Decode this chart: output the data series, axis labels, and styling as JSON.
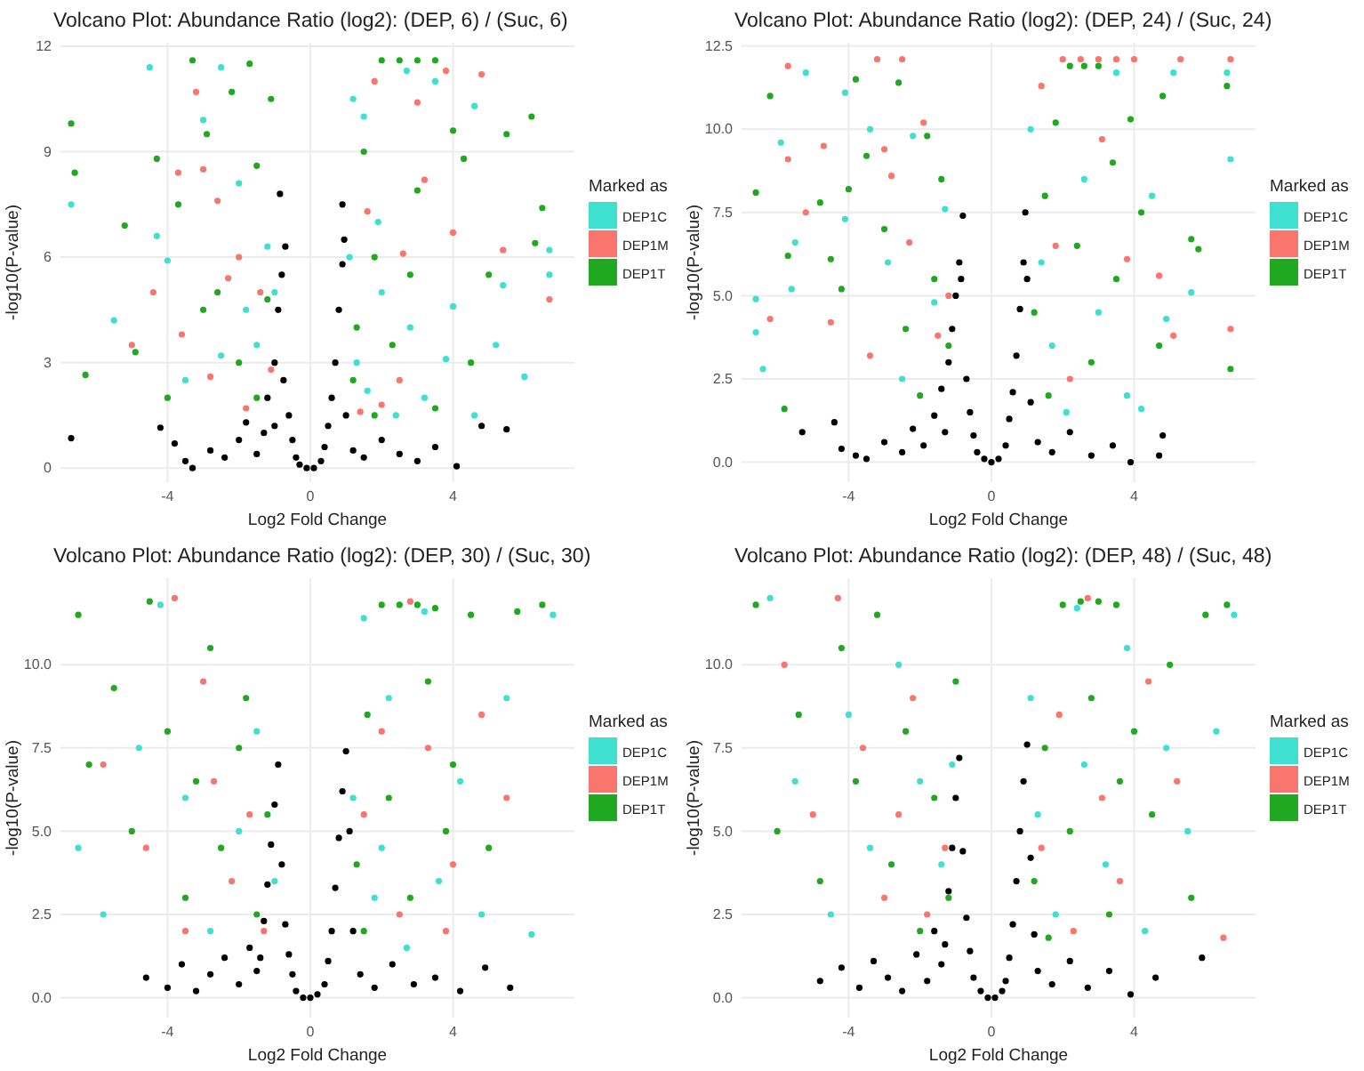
{
  "chart_data": [
    {
      "type": "scatter",
      "title": "Volcano Plot: Abundance Ratio (log2): (DEP, 6) / (Suc, 6)",
      "xlabel": "Log2 Fold Change",
      "ylabel": "-log10(P-value)",
      "legend_title": "Marked as",
      "legend": "right",
      "grid": true,
      "marker": "circle",
      "xlim": [
        -7,
        7.4
      ],
      "xticks": [
        -4,
        0,
        4
      ],
      "ylim": [
        -0.4,
        12.1
      ],
      "yticks": [
        0,
        3,
        6,
        9,
        12
      ],
      "series": [
        {
          "color": "#000000",
          "x": [
            -6.7,
            -4.2,
            -3.8,
            -3.5,
            -3.3,
            -2.8,
            -2.4,
            -2,
            -1.8,
            -1.5,
            -1.3,
            -1.2,
            -1,
            -0.9,
            -0.8,
            -0.7,
            -0.85,
            -0.75,
            -0.6,
            -0.5,
            -0.4,
            -0.3,
            -0.1,
            0.1,
            0.3,
            0.4,
            0.5,
            0.6,
            0.7,
            0.8,
            0.9,
            0.9,
            0.95,
            1.2,
            1.5,
            2,
            2.5,
            3,
            3.5,
            4.1,
            4.8,
            5.5,
            1,
            -1
          ],
          "values": [
            0.85,
            1.15,
            0.7,
            0.2,
            0,
            0.5,
            0.3,
            0.8,
            1.3,
            0.4,
            1,
            2,
            3,
            4.5,
            5.5,
            6.3,
            7.8,
            2.5,
            1.5,
            0.8,
            0.3,
            0.1,
            0,
            0,
            0.2,
            0.6,
            1.2,
            2,
            3,
            4.5,
            5.8,
            7.5,
            6.5,
            0.5,
            0.3,
            0.8,
            0.4,
            0.2,
            0.6,
            0.05,
            1.2,
            1.1,
            1.5,
            1.2
          ]
        },
        {
          "name": "DEP1C",
          "color": "#40e0d0",
          "x": [
            -6.7,
            -5.5,
            -4.5,
            -4.3,
            -4,
            -3.5,
            -2.5,
            -3,
            -2,
            -1.5,
            -1.2,
            -1,
            -2.5,
            -1.8,
            1.2,
            1.5,
            1.1,
            1.3,
            1.6,
            2,
            2.4,
            2.7,
            3.5,
            2.8,
            3.2,
            4.6,
            4,
            5.4,
            5.2,
            6,
            6.7,
            6.7,
            4.6,
            3.8,
            1.9
          ],
          "values": [
            7.5,
            4.2,
            11.4,
            6.6,
            5.9,
            2.5,
            11.4,
            9.9,
            8.1,
            3.5,
            6.3,
            5,
            3.2,
            4.5,
            10.5,
            10,
            6,
            3,
            2.2,
            5,
            1.5,
            11.3,
            11,
            4,
            2,
            10.3,
            4.6,
            5.2,
            3.5,
            2.6,
            6.2,
            5.5,
            1.5,
            3.1,
            7
          ]
        },
        {
          "name": "DEP1M",
          "color": "#f8766d",
          "x": [
            -5,
            -4.4,
            -3.7,
            -3.2,
            -3,
            -2.6,
            -2.3,
            -2,
            -1.8,
            -2.8,
            -1.4,
            -1.1,
            -3.6,
            1.4,
            1.8,
            2,
            2.5,
            3,
            3.2,
            3.8,
            4,
            4.8,
            5.4,
            6.7,
            2.6,
            1.6
          ],
          "values": [
            3.5,
            5,
            8.4,
            10.7,
            8.5,
            7.6,
            5.4,
            6,
            1.7,
            2.6,
            5,
            2.8,
            3.8,
            1.6,
            11,
            1.8,
            2.5,
            10.4,
            8.2,
            11.3,
            6.7,
            11.2,
            6.2,
            4.8,
            6.1,
            7.3
          ]
        },
        {
          "name": "DEP1T",
          "color": "#21a821",
          "x": [
            -6.3,
            -6.6,
            -6.7,
            -5.2,
            -4.9,
            -4.3,
            -4,
            -3.7,
            -3.3,
            -2.9,
            -2.6,
            -2.2,
            -1.7,
            -1.5,
            -1.1,
            -2,
            -1.5,
            -3,
            -1.2,
            1.5,
            1.8,
            2,
            2.5,
            3,
            3.5,
            2.3,
            3,
            1.3,
            4,
            4.5,
            5.5,
            6.2,
            6.3,
            6.5,
            4.3,
            3.5,
            2.8,
            1.2,
            1.8,
            5
          ],
          "values": [
            2.65,
            8.4,
            9.8,
            6.9,
            3.3,
            8.8,
            2,
            7.5,
            11.6,
            9.5,
            5,
            10.7,
            11.5,
            8.6,
            10.5,
            3,
            2,
            4.5,
            4.8,
            9,
            6,
            11.6,
            11.6,
            11.6,
            11.6,
            3.5,
            7.9,
            4,
            9.6,
            3,
            9.5,
            10,
            6.4,
            7.4,
            8.8,
            1.7,
            5.5,
            2.5,
            1.5,
            5.5
          ]
        }
      ]
    },
    {
      "type": "scatter",
      "title": "Volcano Plot: Abundance Ratio (log2): (DEP, 24) / (Suc, 24)",
      "xlabel": "Log2 Fold Change",
      "ylabel": "-log10(P-value)",
      "legend_title": "Marked as",
      "legend": "right",
      "grid": true,
      "marker": "circle",
      "xlim": [
        -7,
        7.4
      ],
      "xticks": [
        -4,
        0,
        4
      ],
      "ylim": [
        -0.6,
        12.6
      ],
      "yticks": [
        {
          "value": 0,
          "label": "0.0"
        },
        2.5,
        {
          "value": 5,
          "label": "5.0"
        },
        7.5,
        {
          "value": 10,
          "label": "10.0"
        },
        12.5
      ],
      "series": [
        {
          "color": "#000000",
          "x": [
            -5.3,
            -4.4,
            -4.2,
            -3.8,
            -3.5,
            -3.0,
            -2.5,
            -2.2,
            -1.9,
            -1.6,
            -1.4,
            -1.2,
            -1.1,
            -1,
            -0.9,
            -0.8,
            -0.85,
            -0.7,
            -0.6,
            -0.5,
            -0.4,
            -0.2,
            0,
            0.2,
            0.4,
            0.5,
            0.6,
            0.7,
            0.8,
            0.9,
            0.95,
            1,
            1.3,
            1.7,
            2.2,
            2.8,
            3.4,
            3.9,
            4.7,
            4.8,
            1.1,
            -1.3
          ],
          "values": [
            0.9,
            1.2,
            0.4,
            0.2,
            0.1,
            0.6,
            0.3,
            1,
            0.5,
            1.4,
            2.2,
            3,
            4,
            5,
            6,
            7.4,
            5.5,
            2.5,
            1.5,
            0.8,
            0.3,
            0.1,
            0,
            0.1,
            0.5,
            1.3,
            2.1,
            3.2,
            4.6,
            6,
            7.5,
            5.5,
            0.6,
            0.3,
            0.9,
            0.2,
            0.5,
            0,
            0.2,
            0.8,
            1.8,
            0.9
          ]
        },
        {
          "name": "DEP1C",
          "color": "#40e0d0",
          "x": [
            -6.6,
            -6.6,
            -6.4,
            -5.9,
            -5.5,
            -5.6,
            -5.2,
            -4.1,
            -4.1,
            -3.4,
            -2.9,
            -2.2,
            -1.6,
            -1.3,
            -2.5,
            1.1,
            1.4,
            1.7,
            2.1,
            2.6,
            3,
            3.5,
            3.8,
            4.5,
            4.9,
            5.1,
            5.6,
            6.7,
            6.6,
            4.2
          ],
          "values": [
            4.9,
            3.9,
            2.8,
            9.6,
            6.6,
            5.2,
            11.7,
            11.1,
            7.3,
            10,
            6,
            9.8,
            4.8,
            7.6,
            2.5,
            10,
            6,
            3.5,
            1.5,
            8.5,
            4.5,
            11.7,
            2,
            8,
            4.3,
            11.7,
            5.1,
            9.1,
            11.7,
            1.6
          ]
        },
        {
          "name": "DEP1M",
          "color": "#f8766d",
          "x": [
            -6.2,
            -5.7,
            -5.7,
            -5.2,
            -4.7,
            -4.5,
            -3.4,
            -3.2,
            -3,
            -2.5,
            -2.8,
            -2.3,
            -1.9,
            -1.5,
            -1.2,
            1.4,
            1.8,
            2,
            2.5,
            3,
            3.5,
            2.2,
            3.1,
            3.8,
            4,
            4.7,
            5.3,
            6.7,
            6.7,
            5.1
          ],
          "values": [
            4.3,
            11.9,
            9.1,
            7.5,
            9.5,
            4.2,
            3.2,
            12.1,
            9.4,
            12.1,
            8.6,
            6.6,
            10.2,
            3.8,
            5,
            11.3,
            6.5,
            12.1,
            12.1,
            12.1,
            12.1,
            2.5,
            9.7,
            6.1,
            12.1,
            5.6,
            12.1,
            12.1,
            4,
            3.8
          ]
        },
        {
          "name": "DEP1T",
          "color": "#21a821",
          "x": [
            -6.6,
            -6.2,
            -5.7,
            -5.8,
            -4.8,
            -4.5,
            -4.2,
            -4,
            -3.8,
            -3.5,
            -3,
            -2.6,
            -2.4,
            -2,
            -1.8,
            -1.4,
            -1.2,
            -1.6,
            1.2,
            1.5,
            1.8,
            2.2,
            2.6,
            3,
            2.4,
            2.8,
            3.4,
            3.9,
            4.2,
            4.7,
            4.8,
            5.6,
            5.8,
            6.7,
            6.6,
            1.6,
            3.5
          ],
          "values": [
            8.1,
            11,
            6.2,
            1.6,
            7.8,
            6.1,
            5.2,
            8.2,
            11.5,
            9.2,
            7,
            11.4,
            4,
            2,
            9.8,
            8.5,
            3.5,
            5.5,
            4.5,
            8,
            10.2,
            11.9,
            11.9,
            11.9,
            6.5,
            3,
            9,
            10.3,
            7.5,
            3.5,
            11,
            6.7,
            6.4,
            2.8,
            11.3,
            2,
            5.5
          ]
        }
      ]
    },
    {
      "type": "scatter",
      "title": "Volcano Plot: Abundance Ratio (log2): (DEP, 30) / (Suc, 30)",
      "xlabel": "Log2 Fold Change",
      "ylabel": "-log10(P-value)",
      "legend_title": "Marked as",
      "legend": "right",
      "grid": true,
      "marker": "circle",
      "xlim": [
        -7,
        7.4
      ],
      "xticks": [
        -4,
        0,
        4
      ],
      "ylim": [
        -0.6,
        12.6
      ],
      "yticks": [
        {
          "value": 0,
          "label": "0.0"
        },
        2.5,
        {
          "value": 5,
          "label": "5.0"
        },
        7.5,
        {
          "value": 10,
          "label": "10.0"
        }
      ],
      "series": [
        {
          "color": "#000000",
          "x": [
            -4.6,
            -4.0,
            -3.6,
            -3.2,
            -2.8,
            -2.4,
            -2.0,
            -1.7,
            -1.5,
            -1.3,
            -1.2,
            -1.1,
            -1,
            -0.9,
            -0.8,
            -0.7,
            -0.6,
            -0.5,
            -0.4,
            -0.2,
            0,
            0.2,
            0.4,
            0.5,
            0.6,
            0.7,
            0.8,
            0.9,
            1,
            1.1,
            1.4,
            1.8,
            2.3,
            2.9,
            3.5,
            4.2,
            4.9,
            5.6,
            1.2,
            -1.4
          ],
          "values": [
            0.6,
            0.3,
            1.0,
            0.2,
            0.7,
            1.2,
            0.4,
            1.5,
            0.8,
            2.3,
            3.4,
            4.6,
            5.8,
            7.0,
            4.0,
            2.2,
            1.3,
            0.7,
            0.2,
            0,
            0,
            0.1,
            0.4,
            1.1,
            2.0,
            3.3,
            4.8,
            6.2,
            7.4,
            5.0,
            0.7,
            0.3,
            1.0,
            0.4,
            0.6,
            0.2,
            0.9,
            0.3,
            2.0,
            1.2
          ]
        },
        {
          "name": "DEP1C",
          "color": "#40e0d0",
          "x": [
            -6.5,
            -5.8,
            -4.8,
            -4.2,
            -3.5,
            -2.8,
            -2,
            -1.5,
            -1,
            1.2,
            1.8,
            2.2,
            2.7,
            3.2,
            3.6,
            4.2,
            4.8,
            5.5,
            6.2,
            6.8,
            2,
            1.5
          ],
          "values": [
            4.5,
            2.5,
            7.5,
            11.8,
            6,
            2,
            5,
            8,
            3.5,
            6,
            3,
            9,
            1.5,
            11.6,
            3.5,
            6.5,
            2.5,
            9,
            1.9,
            11.5,
            4.5,
            11.4
          ]
        },
        {
          "name": "DEP1M",
          "color": "#f8766d",
          "x": [
            -5.8,
            -4.6,
            -3.8,
            -3,
            -2.7,
            -2.2,
            -1.7,
            -1.3,
            -3.5,
            1.5,
            2,
            2.5,
            2.8,
            3.3,
            4,
            4.8,
            5.5,
            3.8
          ],
          "values": [
            7,
            4.5,
            12,
            9.5,
            6.5,
            3.5,
            5.5,
            2,
            2,
            5.5,
            8,
            2.5,
            11.9,
            7.5,
            4,
            8.5,
            6,
            2
          ]
        },
        {
          "name": "DEP1T",
          "color": "#21a821",
          "x": [
            -6.5,
            -6.2,
            -5.5,
            -5,
            -4.5,
            -4,
            -3.5,
            -3.2,
            -2.8,
            -2.5,
            -2,
            -1.5,
            -1.2,
            -1.8,
            1.3,
            1.6,
            2,
            2.5,
            3,
            3.5,
            2.2,
            2.8,
            3.3,
            4,
            4.5,
            5,
            5.8,
            6.5,
            1.5,
            3.8
          ],
          "values": [
            11.5,
            7,
            9.3,
            5,
            11.9,
            8,
            3,
            6.5,
            10.5,
            4.5,
            7.5,
            2.5,
            5.5,
            9,
            4,
            8.5,
            11.8,
            11.8,
            11.8,
            11.7,
            6,
            3,
            9.5,
            7,
            11.5,
            4.5,
            11.6,
            11.8,
            2,
            5
          ]
        }
      ]
    },
    {
      "type": "scatter",
      "title": "Volcano Plot: Abundance Ratio (log2): (DEP, 48) / (Suc, 48)",
      "xlabel": "Log2 Fold Change",
      "ylabel": "-log10(P-value)",
      "legend_title": "Marked as",
      "legend": "right",
      "grid": true,
      "marker": "circle",
      "xlim": [
        -7,
        7.4
      ],
      "xticks": [
        -4,
        0,
        4
      ],
      "ylim": [
        -0.6,
        12.6
      ],
      "yticks": [
        {
          "value": 0,
          "label": "0.0"
        },
        2.5,
        {
          "value": 5,
          "label": "5.0"
        },
        7.5,
        {
          "value": 10,
          "label": "10.0"
        }
      ],
      "series": [
        {
          "color": "#000000",
          "x": [
            -4.8,
            -4.2,
            -3.7,
            -3.3,
            -2.9,
            -2.5,
            -2.1,
            -1.8,
            -1.6,
            -1.4,
            -1.2,
            -1.1,
            -1,
            -0.9,
            -0.8,
            -0.7,
            -0.6,
            -0.5,
            -0.3,
            -0.1,
            0.1,
            0.3,
            0.4,
            0.5,
            0.6,
            0.7,
            0.8,
            0.9,
            1,
            1.1,
            1.3,
            1.7,
            2.2,
            2.7,
            3.3,
            3.9,
            4.6,
            5.9,
            1.2,
            -1.3
          ],
          "values": [
            0.5,
            0.9,
            0.3,
            1.1,
            0.6,
            0.2,
            1.3,
            0.5,
            2.0,
            1.0,
            3.2,
            4.5,
            6.0,
            7.2,
            4.4,
            2.4,
            1.4,
            0.6,
            0.2,
            0,
            0,
            0.2,
            0.5,
            1.2,
            2.2,
            3.5,
            5.0,
            6.5,
            7.6,
            4.2,
            0.8,
            0.4,
            1.1,
            0.3,
            0.8,
            0.1,
            0.6,
            1.2,
            1.9,
            1.6
          ]
        },
        {
          "name": "DEP1C",
          "color": "#40e0d0",
          "x": [
            -6.2,
            -5.5,
            -4.5,
            -4,
            -3.4,
            -2.6,
            -2,
            -1.4,
            -1.1,
            1.3,
            1.8,
            2.4,
            2.6,
            3.2,
            3.8,
            4.3,
            4.9,
            5.5,
            6.3,
            6.8,
            1.1
          ],
          "values": [
            12,
            6.5,
            2.5,
            8.5,
            4.5,
            10,
            6.5,
            4,
            7,
            5.5,
            2.5,
            11.7,
            7,
            4,
            10.5,
            2,
            7.5,
            5,
            8,
            11.5,
            9
          ]
        },
        {
          "name": "DEP1M",
          "color": "#f8766d",
          "x": [
            -5.8,
            -5,
            -4.3,
            -3.6,
            -3,
            -2.6,
            -2.2,
            -1.8,
            -1.3,
            1.4,
            1.9,
            2.3,
            2.7,
            3.1,
            3.6,
            4.4,
            5.2,
            6.5
          ],
          "values": [
            10,
            5.5,
            12,
            7.5,
            3,
            5.5,
            9,
            2.5,
            4.5,
            4.5,
            8.5,
            2,
            12,
            6,
            3.5,
            9.5,
            6.5,
            1.8
          ]
        },
        {
          "name": "DEP1T",
          "color": "#21a821",
          "x": [
            -6.6,
            -6,
            -5.4,
            -4.8,
            -4.2,
            -3.8,
            -3.2,
            -2.8,
            -2.4,
            -2,
            -1.6,
            -1.2,
            -1,
            1.2,
            1.5,
            2,
            2.5,
            3,
            3.5,
            2.2,
            2.8,
            3.3,
            4,
            4.5,
            5,
            5.6,
            6,
            6.6,
            1.6,
            3.6
          ],
          "values": [
            11.8,
            5,
            8.5,
            3.5,
            10.5,
            6.5,
            11.5,
            4,
            8,
            2,
            6,
            3,
            9.5,
            3.5,
            7.5,
            11.8,
            11.9,
            11.9,
            11.8,
            5,
            9,
            2.5,
            8,
            5.5,
            10,
            3,
            11.5,
            11.8,
            1.8,
            6.5
          ]
        }
      ]
    }
  ]
}
